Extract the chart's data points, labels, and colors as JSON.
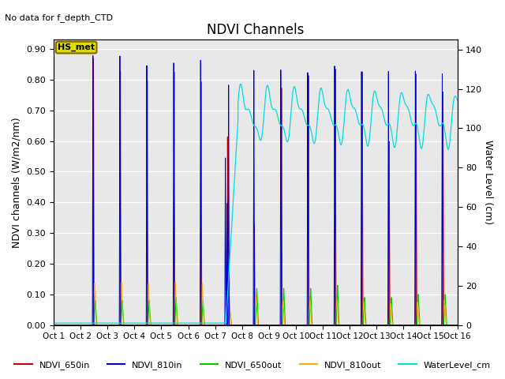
{
  "title": "NDVI Channels",
  "no_data_text": "No data for f_depth_CTD",
  "ylabel_left": "NDVI channels (W/m2/nm)",
  "ylabel_right": "Water Level (cm)",
  "xlim": [
    0,
    15
  ],
  "ylim_left": [
    0,
    0.93
  ],
  "ylim_right": [
    0,
    145
  ],
  "xtick_labels": [
    "Oct 1",
    "Oct 2",
    "Oct 3",
    "Oct 4",
    "Oct 5",
    "Oct 6",
    "Oct 7",
    "Oct 8",
    "Oct 9",
    "Oct 10",
    "Oct 11",
    "Oct 12",
    "Oct 13",
    "Oct 14",
    "Oct 15",
    "Oct 16"
  ],
  "xtick_positions": [
    0,
    1,
    2,
    3,
    4,
    5,
    6,
    7,
    8,
    9,
    10,
    11,
    12,
    13,
    14,
    15
  ],
  "ytick_left": [
    0.0,
    0.1,
    0.2,
    0.3,
    0.4,
    0.5,
    0.6,
    0.7,
    0.8,
    0.9
  ],
  "ytick_right": [
    0,
    20,
    40,
    60,
    80,
    100,
    120,
    140
  ],
  "bg_color": "#e8e8e8",
  "legend_items": [
    {
      "label": "NDVI_650in",
      "color": "#cc0000"
    },
    {
      "label": "NDVI_810in",
      "color": "#0000cc"
    },
    {
      "label": "NDVI_650out",
      "color": "#00cc00"
    },
    {
      "label": "NDVI_810out",
      "color": "#ffaa00"
    },
    {
      "label": "WaterLevel_cm",
      "color": "#00dddd"
    }
  ],
  "hs_met_color": "#dddd00",
  "hs_met_border": "#886600"
}
